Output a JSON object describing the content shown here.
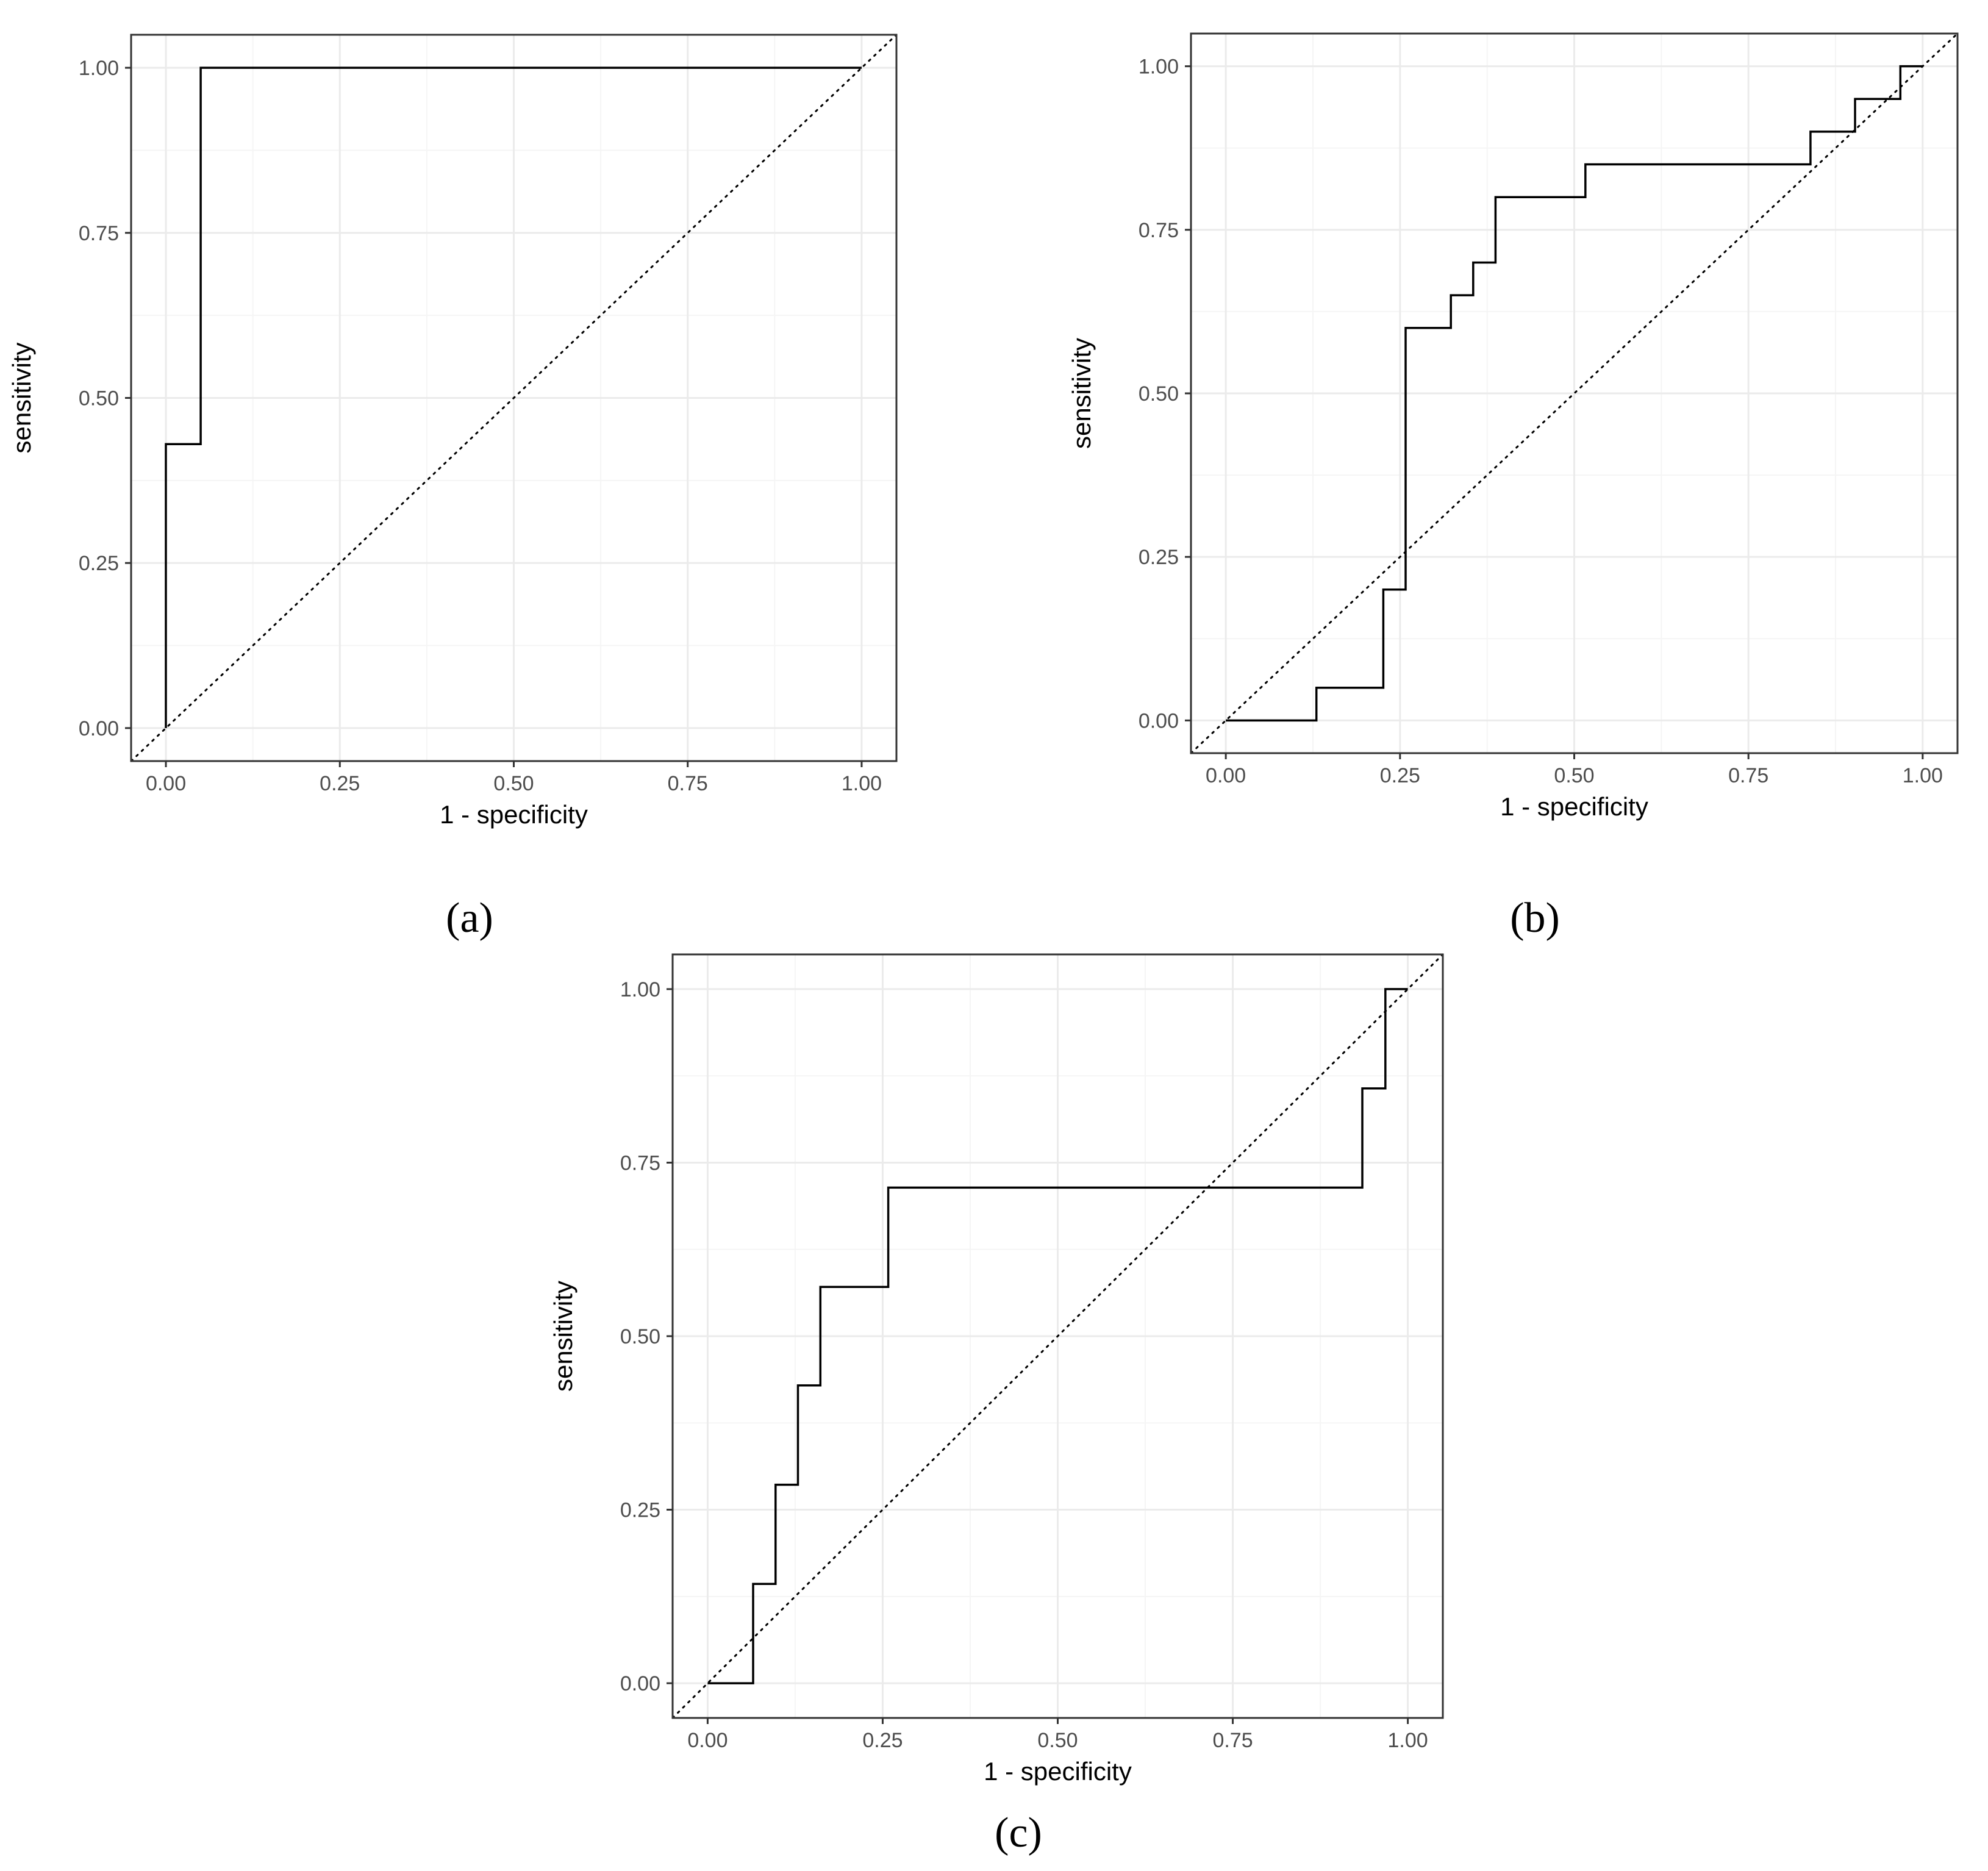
{
  "colors": {
    "grid_major": "#ebebeb",
    "grid_minor": "#f5f5f5",
    "curve": "#000000",
    "diagonal": "#000000",
    "frame": "#333333",
    "tick_text": "#4d4d4d"
  },
  "chart_data": [
    {
      "panel_label": "(a)",
      "type": "line",
      "title": "",
      "xlabel": "1 - specificity",
      "ylabel": "sensitivity",
      "xlim": [
        -0.05,
        1.05
      ],
      "ylim": [
        -0.05,
        1.05
      ],
      "xticks": [
        "0.00",
        "0.25",
        "0.50",
        "0.75",
        "1.00"
      ],
      "yticks": [
        "0.00",
        "0.25",
        "0.50",
        "0.75",
        "1.00"
      ],
      "grid": true,
      "reference_line": {
        "style": "dotted",
        "from": [
          -0.05,
          -0.05
        ],
        "to": [
          1.05,
          1.05
        ]
      },
      "series": [
        {
          "x": [
            0.0,
            0.0,
            0.0,
            0.05,
            0.05,
            1.0
          ],
          "y": [
            0.0,
            0.0,
            0.43,
            0.43,
            1.0,
            1.0
          ]
        }
      ]
    },
    {
      "panel_label": "(b)",
      "type": "line",
      "title": "",
      "xlabel": "1 - specificity",
      "ylabel": "sensitivity",
      "xlim": [
        -0.05,
        1.05
      ],
      "ylim": [
        -0.05,
        1.05
      ],
      "xticks": [
        "0.00",
        "0.25",
        "0.50",
        "0.75",
        "1.00"
      ],
      "yticks": [
        "0.00",
        "0.25",
        "0.50",
        "0.75",
        "1.00"
      ],
      "grid": true,
      "reference_line": {
        "style": "dotted",
        "from": [
          -0.05,
          -0.05
        ],
        "to": [
          1.05,
          1.05
        ]
      },
      "series": [
        {
          "x": [
            0.0,
            0.13,
            0.13,
            0.226,
            0.226,
            0.258,
            0.258,
            0.323,
            0.323,
            0.355,
            0.355,
            0.387,
            0.387,
            0.516,
            0.516,
            0.839,
            0.839,
            0.903,
            0.903,
            0.968,
            0.968,
            1.0
          ],
          "y": [
            0.0,
            0.0,
            0.05,
            0.05,
            0.2,
            0.2,
            0.6,
            0.6,
            0.65,
            0.65,
            0.7,
            0.7,
            0.8,
            0.8,
            0.85,
            0.85,
            0.9,
            0.9,
            0.95,
            0.95,
            1.0,
            1.0
          ]
        }
      ]
    },
    {
      "panel_label": "(c)",
      "type": "line",
      "title": "",
      "xlabel": "1 - specificity",
      "ylabel": "sensitivity",
      "xlim": [
        -0.05,
        1.05
      ],
      "ylim": [
        -0.05,
        1.05
      ],
      "xticks": [
        "0.00",
        "0.25",
        "0.50",
        "0.75",
        "1.00"
      ],
      "yticks": [
        "0.00",
        "0.25",
        "0.50",
        "0.75",
        "1.00"
      ],
      "grid": true,
      "reference_line": {
        "style": "dotted",
        "from": [
          -0.05,
          -0.05
        ],
        "to": [
          1.05,
          1.05
        ]
      },
      "series": [
        {
          "x": [
            0.0,
            0.065,
            0.065,
            0.097,
            0.097,
            0.129,
            0.129,
            0.161,
            0.161,
            0.258,
            0.258,
            0.935,
            0.935,
            0.968,
            0.968,
            1.0
          ],
          "y": [
            0.0,
            0.0,
            0.143,
            0.143,
            0.286,
            0.286,
            0.429,
            0.429,
            0.571,
            0.571,
            0.714,
            0.714,
            0.857,
            0.857,
            1.0,
            1.0
          ]
        }
      ]
    }
  ]
}
